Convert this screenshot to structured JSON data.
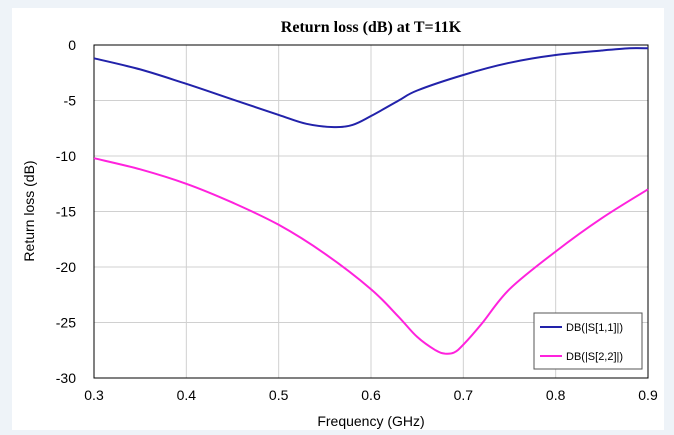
{
  "chart_data": {
    "type": "line",
    "title": "Return loss (dB) at T=11K",
    "xlabel": "Frequency (GHz)",
    "ylabel": "Return loss (dB)",
    "xlim": [
      0.3,
      0.9
    ],
    "ylim": [
      -30,
      0
    ],
    "xticks": [
      "0.3",
      "0.4",
      "0.5",
      "0.6",
      "0.7",
      "0.8",
      "0.9"
    ],
    "yticks": [
      "0",
      "-5",
      "-10",
      "-15",
      "-20",
      "-25",
      "-30"
    ],
    "grid": true,
    "legend_position": "bottom-right",
    "series": [
      {
        "name": "DB(|S[1,1]|)",
        "color": "#2222aa",
        "x": [
          0.3,
          0.35,
          0.4,
          0.45,
          0.5,
          0.53,
          0.56,
          0.58,
          0.6,
          0.63,
          0.65,
          0.7,
          0.75,
          0.8,
          0.85,
          0.88,
          0.9
        ],
        "y": [
          -1.2,
          -2.2,
          -3.5,
          -4.9,
          -6.3,
          -7.1,
          -7.4,
          -7.2,
          -6.4,
          -5.0,
          -4.1,
          -2.7,
          -1.6,
          -0.9,
          -0.5,
          -0.3,
          -0.3
        ]
      },
      {
        "name": "DB(|S[2,2]|)",
        "color": "#ff22dd",
        "x": [
          0.3,
          0.35,
          0.4,
          0.45,
          0.5,
          0.55,
          0.6,
          0.63,
          0.65,
          0.67,
          0.68,
          0.69,
          0.7,
          0.72,
          0.75,
          0.8,
          0.85,
          0.9
        ],
        "y": [
          -10.2,
          -11.2,
          -12.5,
          -14.2,
          -16.2,
          -18.8,
          -22.0,
          -24.5,
          -26.3,
          -27.5,
          -27.8,
          -27.7,
          -27.0,
          -25.1,
          -22.0,
          -18.6,
          -15.6,
          -13.0
        ]
      }
    ]
  }
}
